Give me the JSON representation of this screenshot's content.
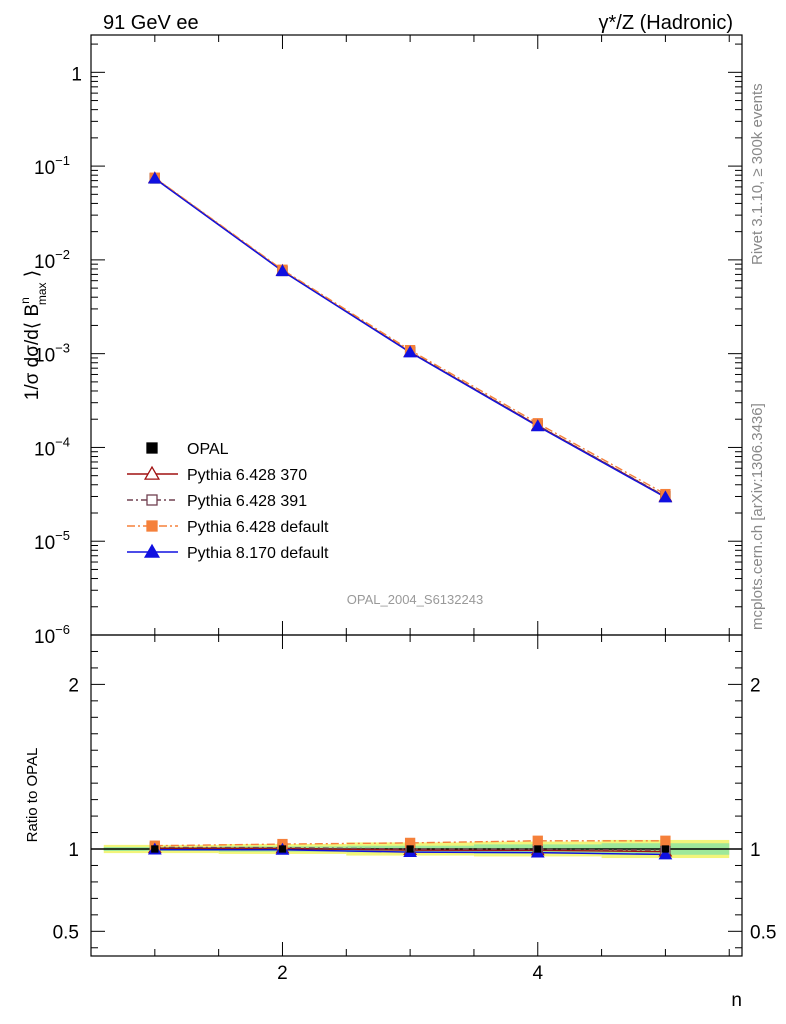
{
  "header": {
    "left": "91 GeV ee",
    "right": "γ*/Z (Hadronic)"
  },
  "side_labels": {
    "rivet": "Rivet 3.1.10, ≥ 300k events",
    "mcplots": "mcplots.cern.ch [arXiv:1306.3436]"
  },
  "watermark": "OPAL_2004_S6132243",
  "chart_data": [
    {
      "type": "line",
      "panel": "main",
      "yscale": "log",
      "ylabel": "1/σ dσ/d⟨ B^n_max ⟩",
      "ylabel_parts": {
        "main": "1/σ dσ/d⟨ B",
        "sup": "n",
        "sub": "max",
        "close": " ⟩"
      },
      "ylim": [
        1e-06,
        2.5
      ],
      "xlim": [
        0.5,
        5.6
      ],
      "xlabel": "",
      "y_ticks": [
        {
          "value": 1,
          "base": "1",
          "exp": ""
        },
        {
          "value": 0.1,
          "base": "10",
          "exp": "−1"
        },
        {
          "value": 0.01,
          "base": "10",
          "exp": "−2"
        },
        {
          "value": 0.001,
          "base": "10",
          "exp": "−3"
        },
        {
          "value": 0.0001,
          "base": "10",
          "exp": "−4"
        },
        {
          "value": 1e-05,
          "base": "10",
          "exp": "−5"
        },
        {
          "value": 1e-06,
          "base": "10",
          "exp": "−6"
        }
      ],
      "x": [
        1,
        2,
        3,
        4,
        5
      ],
      "series": [
        {
          "name": "OPAL",
          "color": "#000000",
          "marker": "square-filled",
          "dash": "none",
          "values": [
            0.0738,
            0.00762,
            0.00105,
            0.000172,
            3.03e-05
          ]
        },
        {
          "name": "Pythia 6.428 370",
          "color": "#a01010",
          "marker": "triangle-open",
          "dash": "solid",
          "values": [
            0.0742,
            0.00765,
            0.00104,
            0.000171,
            2.98e-05
          ]
        },
        {
          "name": "Pythia 6.428 391",
          "color": "#704050",
          "marker": "square-open",
          "dash": "dashdot",
          "values": [
            0.0745,
            0.00768,
            0.00105,
            0.000172,
            3.01e-05
          ]
        },
        {
          "name": "Pythia 6.428 default",
          "color": "#f5803a",
          "marker": "square-filled",
          "dash": "dashdot2",
          "values": [
            0.0752,
            0.00785,
            0.00109,
            0.000181,
            3.18e-05
          ]
        },
        {
          "name": "Pythia 8.170 default",
          "color": "#1010e0",
          "marker": "triangle-filled",
          "dash": "solid",
          "values": [
            0.0735,
            0.00758,
            0.00103,
            0.000168,
            2.93e-05
          ]
        }
      ]
    },
    {
      "type": "line",
      "panel": "ratio",
      "yscale": "linear",
      "ylabel": "Ratio to OPAL",
      "xlabel": "n",
      "ylim": [
        0.35,
        2.3
      ],
      "xlim": [
        0.5,
        5.6
      ],
      "y_ticks": [
        {
          "value": 0.5,
          "label": "0.5"
        },
        {
          "value": 1,
          "label": "1"
        },
        {
          "value": 2,
          "label": "2"
        }
      ],
      "x_ticks": [
        {
          "value": 2,
          "label": "2"
        },
        {
          "value": 4,
          "label": "4"
        }
      ],
      "x": [
        1,
        2,
        3,
        4,
        5
      ],
      "band_total": [
        0.025,
        0.03,
        0.04,
        0.045,
        0.055
      ],
      "band_stat": [
        0.012,
        0.016,
        0.02,
        0.028,
        0.035
      ],
      "series": [
        {
          "name": "Pythia 6.428 370",
          "values": [
            1.005,
            1.004,
            0.993,
            0.992,
            0.984
          ]
        },
        {
          "name": "Pythia 6.428 391",
          "values": [
            1.01,
            1.008,
            1.0,
            0.998,
            0.994
          ]
        },
        {
          "name": "Pythia 6.428 default",
          "values": [
            1.02,
            1.03,
            1.037,
            1.05,
            1.05
          ]
        },
        {
          "name": "Pythia 8.170 default",
          "values": [
            0.996,
            0.995,
            0.981,
            0.978,
            0.967
          ]
        }
      ]
    }
  ]
}
